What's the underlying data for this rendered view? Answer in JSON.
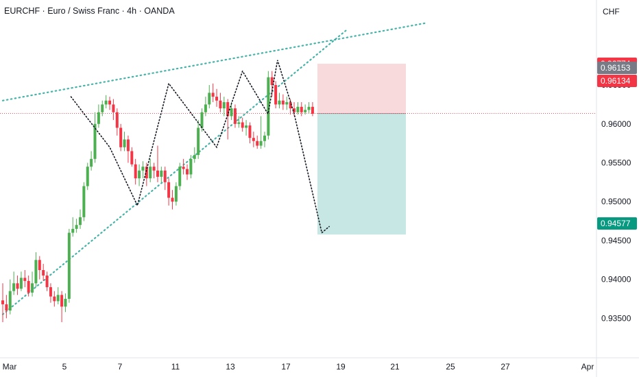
{
  "header": {
    "title": "EURCHF · Euro / Swiss Franc · 4h · OANDA",
    "currency": "CHF"
  },
  "colors": {
    "up": "#4caf50",
    "down": "#f23645",
    "trend": "#26a69a",
    "stop_zone": "#f8d7da",
    "target_zone": "#c4e6e3",
    "tag_stop": "#f23645",
    "tag_last": "#787b86",
    "tag_current": "#f23645",
    "tag_target": "#089981"
  },
  "chart_data": {
    "type": "candlestick",
    "symbol": "EURCHF",
    "timeframe": "4h",
    "ylim": [
      0.931,
      0.9725
    ],
    "y_ticks": [
      "0.96500",
      "0.96000",
      "0.95500",
      "0.95000",
      "0.94500",
      "0.94000",
      "0.93500"
    ],
    "y_tick_values": [
      0.965,
      0.96,
      0.955,
      0.95,
      0.945,
      0.94,
      0.935
    ],
    "x_ticks": [
      "Mar",
      "5",
      "7",
      "11",
      "13",
      "17",
      "19",
      "21",
      "25",
      "27",
      "Apr"
    ],
    "price_tags": [
      {
        "label": "0.96774",
        "value": 0.96774,
        "kind": "stop"
      },
      {
        "label": "0.96153",
        "value": 0.96153,
        "kind": "last"
      },
      {
        "label": "0.96134",
        "value": 0.96134,
        "kind": "current"
      },
      {
        "label": "0.94577",
        "value": 0.94577,
        "kind": "target"
      }
    ],
    "position": {
      "type": "short",
      "entry": 0.96134,
      "stop": 0.96774,
      "target": 0.94577
    },
    "candles": [
      [
        0.9373,
        0.9368,
        0.9395,
        0.9345
      ],
      [
        0.9368,
        0.936,
        0.938,
        0.935
      ],
      [
        0.936,
        0.9385,
        0.94,
        0.9355
      ],
      [
        0.9385,
        0.9395,
        0.941,
        0.938
      ],
      [
        0.9395,
        0.9388,
        0.9405,
        0.938
      ],
      [
        0.9388,
        0.9402,
        0.941,
        0.9385
      ],
      [
        0.9402,
        0.9398,
        0.9412,
        0.939
      ],
      [
        0.9398,
        0.9383,
        0.9405,
        0.9378
      ],
      [
        0.9383,
        0.9395,
        0.941,
        0.9378
      ],
      [
        0.9395,
        0.9425,
        0.9435,
        0.939
      ],
      [
        0.9425,
        0.9412,
        0.943,
        0.94
      ],
      [
        0.9412,
        0.9405,
        0.942,
        0.9398
      ],
      [
        0.9405,
        0.939,
        0.941,
        0.9385
      ],
      [
        0.939,
        0.9378,
        0.9395,
        0.937
      ],
      [
        0.9378,
        0.9372,
        0.9385,
        0.9365
      ],
      [
        0.9372,
        0.938,
        0.939,
        0.9368
      ],
      [
        0.938,
        0.9365,
        0.9385,
        0.9345
      ],
      [
        0.9365,
        0.9375,
        0.9382,
        0.9358
      ],
      [
        0.9375,
        0.946,
        0.9465,
        0.937
      ],
      [
        0.946,
        0.9465,
        0.948,
        0.9455
      ],
      [
        0.9465,
        0.947,
        0.9478,
        0.946
      ],
      [
        0.947,
        0.948,
        0.949,
        0.9465
      ],
      [
        0.948,
        0.952,
        0.9525,
        0.9475
      ],
      [
        0.952,
        0.9545,
        0.955,
        0.9515
      ],
      [
        0.9545,
        0.9555,
        0.9565,
        0.954
      ],
      [
        0.9555,
        0.96,
        0.9615,
        0.955
      ],
      [
        0.96,
        0.9615,
        0.9625,
        0.9595
      ],
      [
        0.9615,
        0.9625,
        0.963,
        0.961
      ],
      [
        0.9625,
        0.963,
        0.9637,
        0.962
      ],
      [
        0.963,
        0.9625,
        0.9635,
        0.9618
      ],
      [
        0.9625,
        0.9615,
        0.9632,
        0.9605
      ],
      [
        0.9615,
        0.9595,
        0.962,
        0.9585
      ],
      [
        0.9595,
        0.957,
        0.96,
        0.9565
      ],
      [
        0.957,
        0.958,
        0.959,
        0.9565
      ],
      [
        0.958,
        0.9565,
        0.9585,
        0.955
      ],
      [
        0.9565,
        0.9548,
        0.957,
        0.9545
      ],
      [
        0.9548,
        0.953,
        0.9555,
        0.9522
      ],
      [
        0.953,
        0.954,
        0.9548,
        0.952
      ],
      [
        0.954,
        0.9545,
        0.9552,
        0.953
      ],
      [
        0.9545,
        0.953,
        0.955,
        0.952
      ],
      [
        0.953,
        0.9545,
        0.9555,
        0.9525
      ],
      [
        0.9545,
        0.954,
        0.955,
        0.953
      ],
      [
        0.954,
        0.9532,
        0.9572,
        0.9525
      ],
      [
        0.9532,
        0.954,
        0.9545,
        0.9525
      ],
      [
        0.954,
        0.9525,
        0.9545,
        0.9515
      ],
      [
        0.9525,
        0.9505,
        0.953,
        0.9495
      ],
      [
        0.9505,
        0.95,
        0.9515,
        0.949
      ],
      [
        0.95,
        0.952,
        0.9525,
        0.9495
      ],
      [
        0.952,
        0.9545,
        0.955,
        0.9515
      ],
      [
        0.9545,
        0.9542,
        0.9555,
        0.9535
      ],
      [
        0.9542,
        0.9535,
        0.9548,
        0.9528
      ],
      [
        0.9535,
        0.9555,
        0.956,
        0.953
      ],
      [
        0.9555,
        0.956,
        0.957,
        0.955
      ],
      [
        0.956,
        0.9595,
        0.9605,
        0.9555
      ],
      [
        0.9595,
        0.9615,
        0.962,
        0.959
      ],
      [
        0.9615,
        0.9625,
        0.9635,
        0.961
      ],
      [
        0.9625,
        0.964,
        0.965,
        0.962
      ],
      [
        0.964,
        0.9635,
        0.9652,
        0.9628
      ],
      [
        0.9635,
        0.963,
        0.9645,
        0.9622
      ],
      [
        0.963,
        0.962,
        0.964,
        0.9615
      ],
      [
        0.962,
        0.9628,
        0.9635,
        0.961
      ],
      [
        0.9628,
        0.961,
        0.9632,
        0.958
      ],
      [
        0.961,
        0.962,
        0.9628,
        0.9605
      ],
      [
        0.962,
        0.96,
        0.9625,
        0.9595
      ],
      [
        0.96,
        0.9602,
        0.961,
        0.9595
      ],
      [
        0.9602,
        0.9595,
        0.9608,
        0.959
      ],
      [
        0.9595,
        0.9598,
        0.9605,
        0.9585
      ],
      [
        0.9598,
        0.9582,
        0.9602,
        0.9575
      ],
      [
        0.9582,
        0.9578,
        0.959,
        0.957
      ],
      [
        0.9578,
        0.9572,
        0.9585,
        0.9568
      ],
      [
        0.9572,
        0.9578,
        0.961,
        0.9568
      ],
      [
        0.9578,
        0.9585,
        0.959,
        0.957
      ],
      [
        0.9585,
        0.966,
        0.9668,
        0.958
      ],
      [
        0.966,
        0.965,
        0.9668,
        0.9635
      ],
      [
        0.965,
        0.9625,
        0.9655,
        0.962
      ],
      [
        0.9625,
        0.963,
        0.964,
        0.962
      ],
      [
        0.963,
        0.9625,
        0.9638,
        0.9618
      ],
      [
        0.9625,
        0.9628,
        0.9635,
        0.9618
      ],
      [
        0.9628,
        0.962,
        0.9632,
        0.9612
      ],
      [
        0.962,
        0.9615,
        0.9628,
        0.961
      ],
      [
        0.9615,
        0.9622,
        0.9628,
        0.9612
      ],
      [
        0.9622,
        0.9615,
        0.9628,
        0.961
      ],
      [
        0.9615,
        0.9618,
        0.9625,
        0.9612
      ],
      [
        0.9618,
        0.9622,
        0.9628,
        0.9614
      ],
      [
        0.9622,
        0.9613,
        0.9628,
        0.961
      ]
    ],
    "trend_lines": [
      {
        "name": "upper",
        "from": [
          0,
          0.963
        ],
        "to": [
          115,
          0.973
        ]
      },
      {
        "name": "lower",
        "from": [
          0,
          0.9355
        ],
        "to": [
          93,
          0.972
        ]
      }
    ],
    "pattern_path": [
      [
        18.5,
        0.9635
      ],
      [
        29,
        0.957
      ],
      [
        36.5,
        0.9495
      ],
      [
        45,
        0.9652
      ],
      [
        58,
        0.957
      ],
      [
        65,
        0.9668
      ],
      [
        72,
        0.9612
      ]
    ],
    "projection_path": [
      [
        72,
        0.9615
      ],
      [
        74.5,
        0.9682
      ],
      [
        79,
        0.9613
      ],
      [
        86.5,
        0.946
      ],
      [
        88.5,
        0.9468
      ]
    ]
  }
}
